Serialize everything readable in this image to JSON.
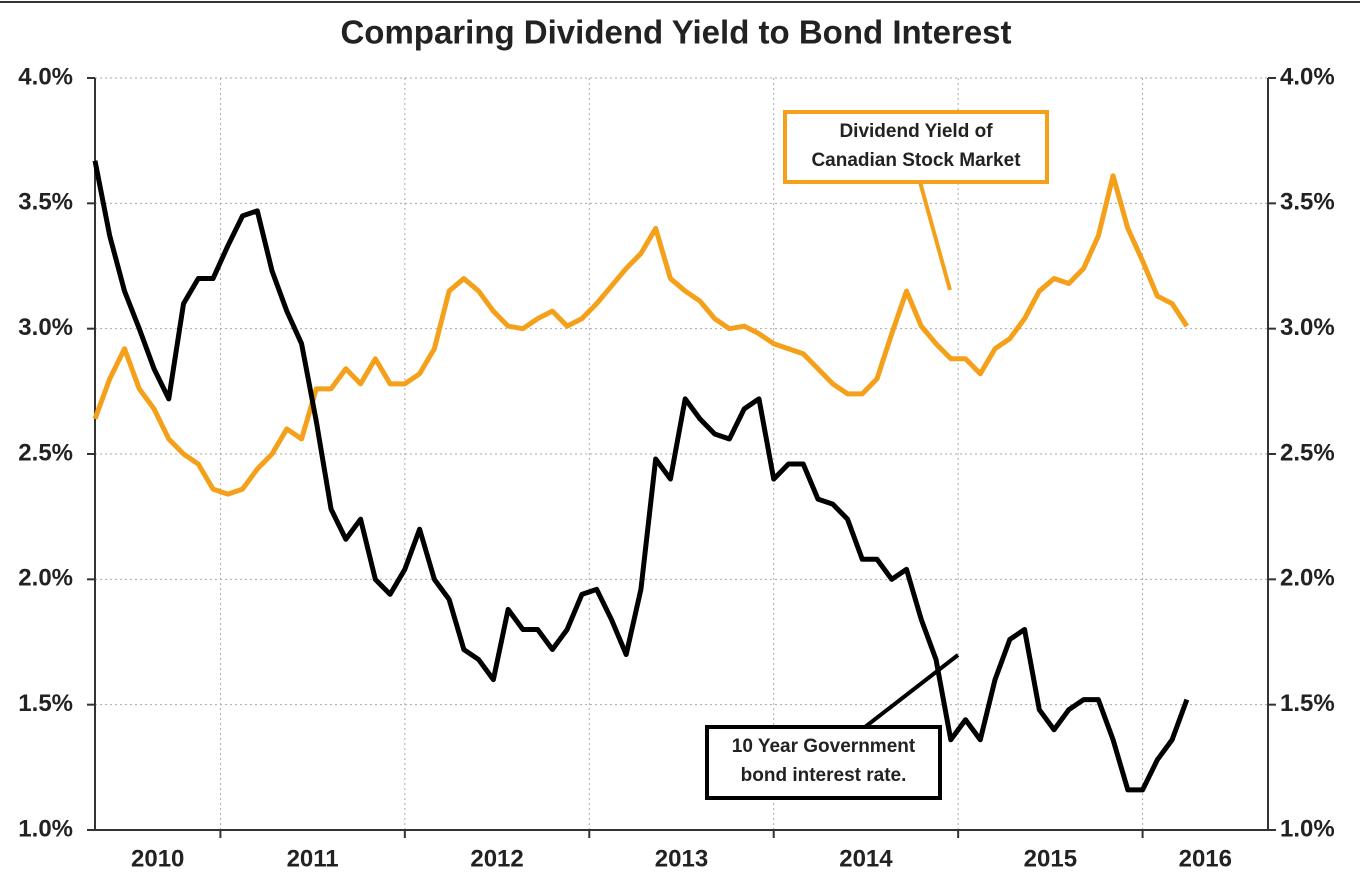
{
  "chart_data": {
    "type": "line",
    "title": "Comparing Dividend Yield to Bond Interest",
    "x": [
      2010.32,
      2010.4,
      2010.48,
      2010.56,
      2010.64,
      2010.72,
      2010.8,
      2010.88,
      2010.96,
      2011.04,
      2011.12,
      2011.2,
      2011.28,
      2011.36,
      2011.44,
      2011.52,
      2011.6,
      2011.68,
      2011.76,
      2011.84,
      2011.92,
      2012.0,
      2012.08,
      2012.16,
      2012.24,
      2012.32,
      2012.4,
      2012.48,
      2012.56,
      2012.64,
      2012.72,
      2012.8,
      2012.88,
      2012.96,
      2013.04,
      2013.12,
      2013.2,
      2013.28,
      2013.36,
      2013.44,
      2013.52,
      2013.6,
      2013.68,
      2013.76,
      2013.84,
      2013.92,
      2014.0,
      2014.08,
      2014.16,
      2014.24,
      2014.32,
      2014.4,
      2014.48,
      2014.56,
      2014.64,
      2014.72,
      2014.8,
      2014.88,
      2014.96,
      2015.04,
      2015.12,
      2015.2,
      2015.28,
      2015.36,
      2015.44,
      2015.52,
      2015.6,
      2015.68,
      2015.76,
      2015.84,
      2015.92,
      2016.0,
      2016.08,
      2016.16,
      2016.24
    ],
    "series": [
      {
        "color": "#f5a01a",
        "values": [
          2.64,
          2.8,
          2.92,
          2.76,
          2.68,
          2.56,
          2.5,
          2.46,
          2.36,
          2.34,
          2.36,
          2.44,
          2.5,
          2.6,
          2.56,
          2.76,
          2.76,
          2.84,
          2.78,
          2.88,
          2.78,
          2.78,
          2.82,
          2.92,
          3.15,
          3.2,
          3.15,
          3.07,
          3.01,
          3.0,
          3.04,
          3.07,
          3.01,
          3.04,
          3.1,
          3.17,
          3.24,
          3.3,
          3.4,
          3.2,
          3.15,
          3.11,
          3.04,
          3.0,
          3.01,
          2.98,
          2.94,
          2.92,
          2.9,
          2.84,
          2.78,
          2.74,
          2.74,
          2.8,
          2.98,
          3.15,
          3.01,
          2.94,
          2.88,
          2.88,
          2.82,
          2.92,
          2.96,
          3.04,
          3.15,
          3.2,
          3.18,
          3.24,
          3.37,
          3.61,
          3.4,
          3.27,
          3.13,
          3.1,
          3.01
        ]
      },
      {
        "color": "#000000",
        "values": [
          3.67,
          3.37,
          3.15,
          3.0,
          2.84,
          2.72,
          3.1,
          3.2,
          3.2,
          3.33,
          3.45,
          3.47,
          3.23,
          3.07,
          2.94,
          2.63,
          2.28,
          2.16,
          2.24,
          2.0,
          1.94,
          2.04,
          2.2,
          2.0,
          1.92,
          1.72,
          1.68,
          1.6,
          1.88,
          1.8,
          1.8,
          1.72,
          1.8,
          1.94,
          1.96,
          1.84,
          1.7,
          1.96,
          2.48,
          2.4,
          2.72,
          2.64,
          2.58,
          2.56,
          2.68,
          2.72,
          2.4,
          2.46,
          2.46,
          2.32,
          2.3,
          2.24,
          2.08,
          2.08,
          2.0,
          2.04,
          1.84,
          1.68,
          1.36,
          1.44,
          1.36,
          1.6,
          1.76,
          1.8,
          1.48,
          1.4,
          1.48,
          1.52,
          1.52,
          1.36,
          1.16,
          1.16,
          1.28,
          1.36,
          1.52
        ]
      }
    ],
    "xlim": [
      2010.32,
      2016.68
    ],
    "xticks": [
      2011,
      2012,
      2013,
      2014,
      2015,
      2016
    ],
    "x_labels": [
      "2010",
      "2011",
      "2012",
      "2013",
      "2014",
      "2015",
      "2016"
    ],
    "ylim": [
      1,
      4
    ],
    "yticks": [
      {
        "value": 1,
        "label": "1.0%"
      },
      {
        "value": 1.5,
        "label": "1.5%"
      },
      {
        "value": 2,
        "label": "2.0%"
      },
      {
        "value": 2.5,
        "label": "2.5%"
      },
      {
        "value": 3,
        "label": "3.0%"
      },
      {
        "value": 3.5,
        "label": "3.5%"
      },
      {
        "value": 4,
        "label": "4.0%"
      }
    ],
    "y2lim": [
      1,
      4
    ],
    "y2ticks": [
      {
        "value": 1,
        "label": "1.0%"
      },
      {
        "value": 1.5,
        "label": "1.5%"
      },
      {
        "value": 2,
        "label": "2.0%"
      },
      {
        "value": 2.5,
        "label": "2.5%"
      },
      {
        "value": 3,
        "label": "3.0%"
      },
      {
        "value": 3.5,
        "label": "3.5%"
      },
      {
        "value": 4,
        "label": "4.0%"
      }
    ],
    "grid": true,
    "annotations": [
      {
        "lines": [
          "Dividend Yield of",
          "Canadian Stock Market"
        ],
        "color": "#f5a01a"
      },
      {
        "lines": [
          "10 Year Government",
          "bond interest rate."
        ],
        "color": "#000000"
      }
    ]
  }
}
